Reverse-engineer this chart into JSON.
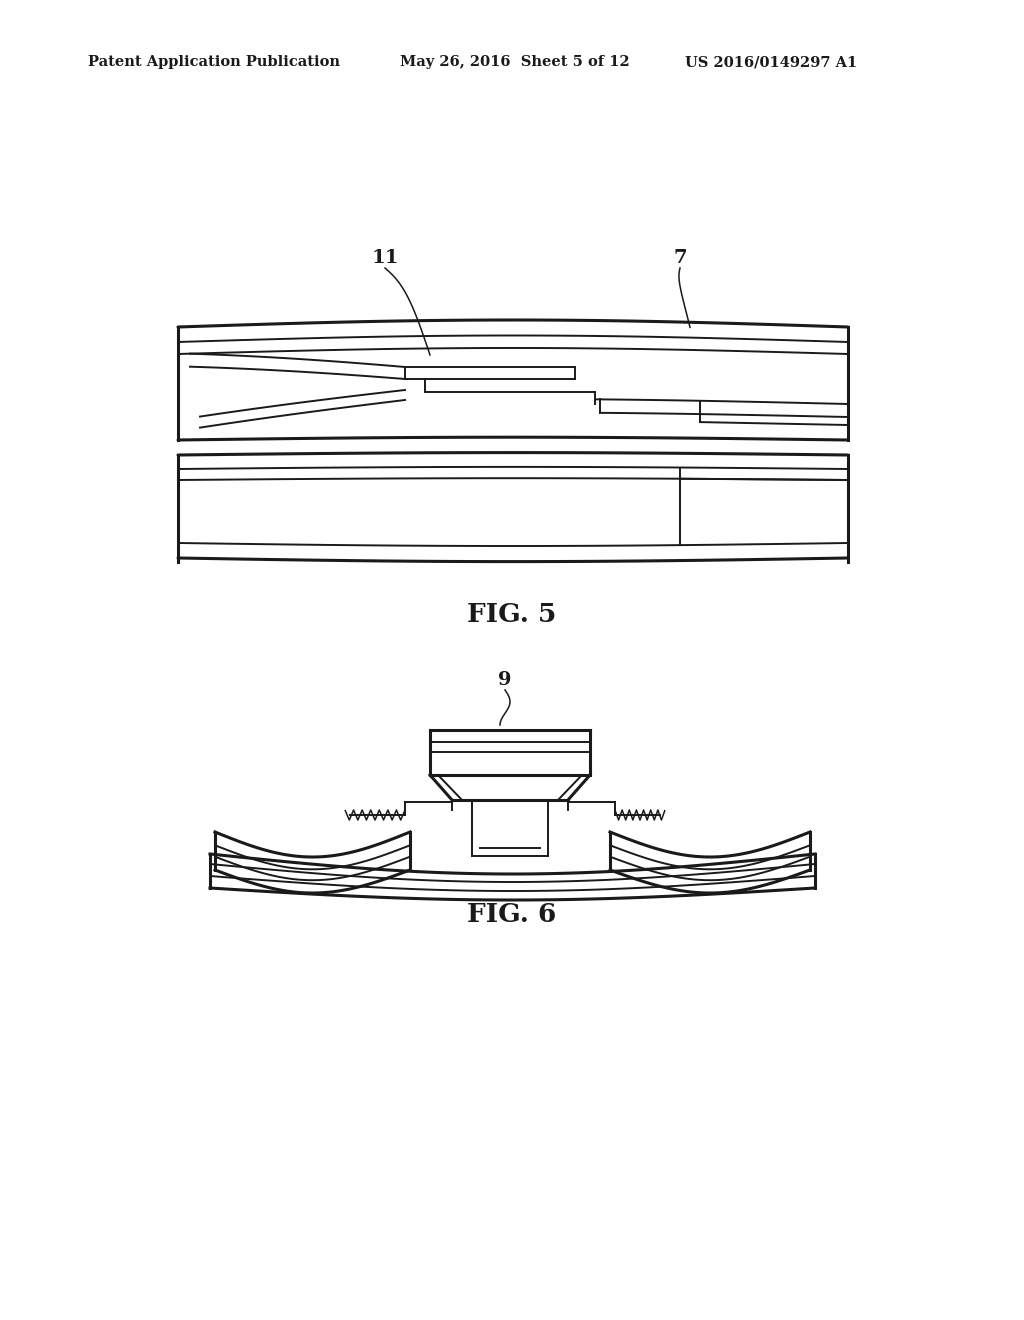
{
  "background_color": "#ffffff",
  "line_color": "#1a1a1a",
  "header_left": "Patent Application Publication",
  "header_mid": "May 26, 2016  Sheet 5 of 12",
  "header_right": "US 2016/0149297 A1",
  "fig5_label": "FIG. 5",
  "fig6_label": "FIG. 6",
  "label_11": "11",
  "label_7": "7",
  "label_9": "9"
}
